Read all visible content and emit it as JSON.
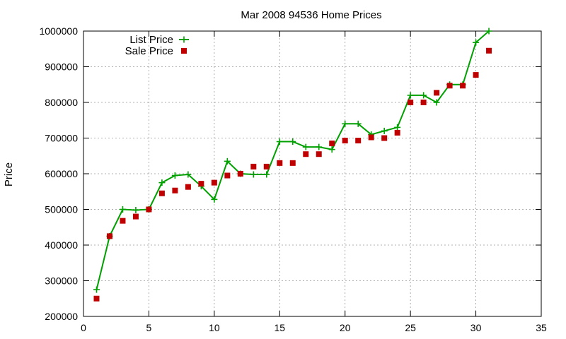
{
  "chart_data": {
    "type": "line",
    "title": "Mar 2008 94536 Home Prices",
    "xlabel": "",
    "ylabel": "Price",
    "xlim": [
      0,
      35
    ],
    "ylim": [
      200000,
      1000000
    ],
    "xticks": [
      0,
      5,
      10,
      15,
      20,
      25,
      30,
      35
    ],
    "yticks": [
      200000,
      300000,
      400000,
      500000,
      600000,
      700000,
      800000,
      900000,
      1000000
    ],
    "grid": true,
    "legend_position": "top-left",
    "series": [
      {
        "name": "List Price",
        "kind": "line-with-plus-markers",
        "color": "#00a000",
        "x": [
          1,
          2,
          3,
          4,
          5,
          6,
          7,
          8,
          9,
          10,
          11,
          12,
          13,
          14,
          15,
          16,
          17,
          18,
          19,
          20,
          21,
          22,
          23,
          24,
          25,
          26,
          27,
          28,
          29,
          30,
          31
        ],
        "values": [
          275000,
          425000,
          500000,
          498000,
          500000,
          575000,
          595000,
          598000,
          565000,
          528000,
          635000,
          600000,
          598000,
          598000,
          690000,
          690000,
          675000,
          675000,
          668000,
          740000,
          740000,
          710000,
          720000,
          730000,
          820000,
          820000,
          800000,
          850000,
          850000,
          968000,
          1000000
        ]
      },
      {
        "name": "Sale Price",
        "kind": "square-markers",
        "color": "#c00000",
        "x": [
          1,
          2,
          3,
          4,
          5,
          6,
          7,
          8,
          9,
          10,
          11,
          12,
          13,
          14,
          15,
          16,
          17,
          18,
          19,
          20,
          21,
          22,
          23,
          24,
          25,
          26,
          27,
          28,
          29,
          30,
          31
        ],
        "values": [
          250000,
          425000,
          468000,
          480000,
          500000,
          545000,
          553000,
          563000,
          572000,
          575000,
          595000,
          600000,
          620000,
          620000,
          630000,
          630000,
          655000,
          655000,
          685000,
          693000,
          693000,
          702000,
          700000,
          715000,
          800000,
          800000,
          827000,
          847000,
          847000,
          877000,
          945000
        ]
      }
    ]
  }
}
